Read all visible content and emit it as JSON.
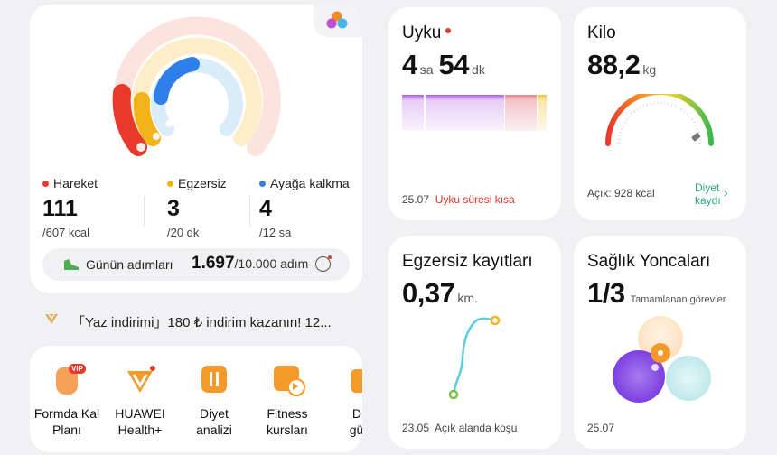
{
  "activity": {
    "move": {
      "label": "Hareket",
      "value": "111",
      "goal": "/607 kcal",
      "color": "#e8392b",
      "progress": 0.18
    },
    "exercise": {
      "label": "Egzersiz",
      "value": "3",
      "goal": "/20 dk",
      "color": "#f3b41a",
      "progress": 0.15
    },
    "stand": {
      "label": "Ayağa kalkma",
      "value": "4",
      "goal": "/12 sa",
      "color": "#2e7fe8",
      "progress": 0.33
    },
    "steps": {
      "label": "Günün adımları",
      "value": "1.697",
      "goal": "/10.000 adım"
    }
  },
  "promo": {
    "text": "「Yaz indirimi」180 ₺ indirim kazanın! 12..."
  },
  "apps": [
    {
      "label1": "Formda Kal",
      "label2": "Planı",
      "badge": "VIP"
    },
    {
      "label1": "HUAWEI",
      "label2": "Health+"
    },
    {
      "label1": "Diyet",
      "label2": "analizi"
    },
    {
      "label1": "Fitness",
      "label2": "kursları"
    },
    {
      "label1": "Diy",
      "label2": "günl"
    }
  ],
  "sleep": {
    "title": "Uyku",
    "hours": "4",
    "hours_unit": "sa",
    "minutes": "54",
    "minutes_unit": "dk",
    "date": "25.07",
    "status": "Uyku süresi kısa"
  },
  "weight": {
    "title": "Kilo",
    "value": "88,2",
    "unit": "kg",
    "deficit": "Açık: 928 kcal",
    "link1": "Diyet",
    "link2": "kaydı"
  },
  "exercise_log": {
    "title": "Egzersiz kayıtları",
    "value": "0,37",
    "unit": "km.",
    "date": "23.05",
    "type": "Açık alanda koşu"
  },
  "clover": {
    "title": "Sağlık Yoncaları",
    "value": "1/3",
    "caption": "Tamamlanan görevler",
    "date": "25.07"
  }
}
